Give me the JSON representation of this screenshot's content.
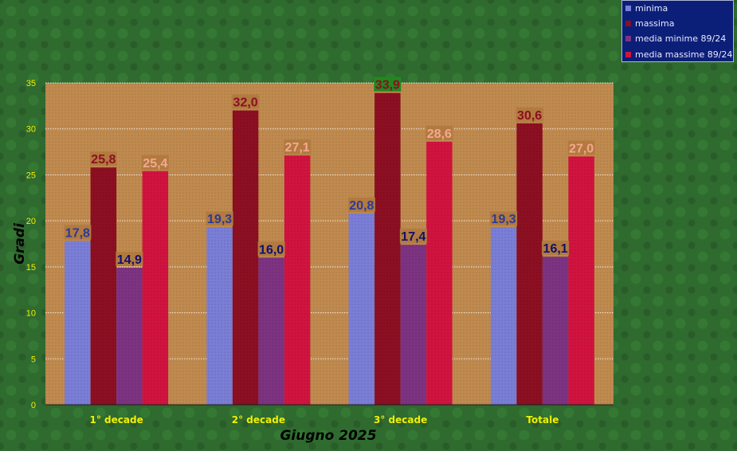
{
  "chart_data": {
    "type": "bar",
    "xlabel": "Giugno 2025",
    "ylabel": "Gradi",
    "ylim": [
      0,
      35
    ],
    "yticks": [
      0,
      5,
      10,
      15,
      20,
      25,
      30,
      35
    ],
    "grid": true,
    "legend_position": "top-right",
    "categories": [
      "1° decade",
      "2° decade",
      "3° decade",
      "Totale"
    ],
    "series": [
      {
        "name": "minima",
        "values": [
          17.8,
          19.3,
          20.8,
          19.3
        ],
        "labels": [
          "17,8",
          "19,3",
          "20,8",
          "19,3"
        ],
        "color": "#7a7ed6",
        "label_color": "#2b3a9a"
      },
      {
        "name": "massima",
        "values": [
          25.8,
          32.0,
          33.9,
          30.6
        ],
        "labels": [
          "25,8",
          "32,0",
          "33,9",
          "30,6"
        ],
        "color": "#8c0f22",
        "label_color": "#8c0f22"
      },
      {
        "name": "media minime 89/24",
        "values": [
          14.9,
          16.0,
          17.4,
          16.1
        ],
        "labels": [
          "14,9",
          "16,0",
          "17,4",
          "16,1"
        ],
        "color": "#7d3381",
        "label_color": "#101070"
      },
      {
        "name": "media massime 89/24",
        "values": [
          25.4,
          27.1,
          28.6,
          27.0
        ],
        "labels": [
          "25,4",
          "27,1",
          "28,6",
          "27,0"
        ],
        "color": "#d1133f",
        "label_color": "#f3a890"
      }
    ]
  },
  "colors": {
    "plot_background": "#c08a4f",
    "axis_tick_text": "#f0f000",
    "category_text": "#f0f000",
    "axis_title_text": "#000000",
    "label_box": "#b27a3f",
    "label_box_highlight": "#1e8a1e"
  }
}
